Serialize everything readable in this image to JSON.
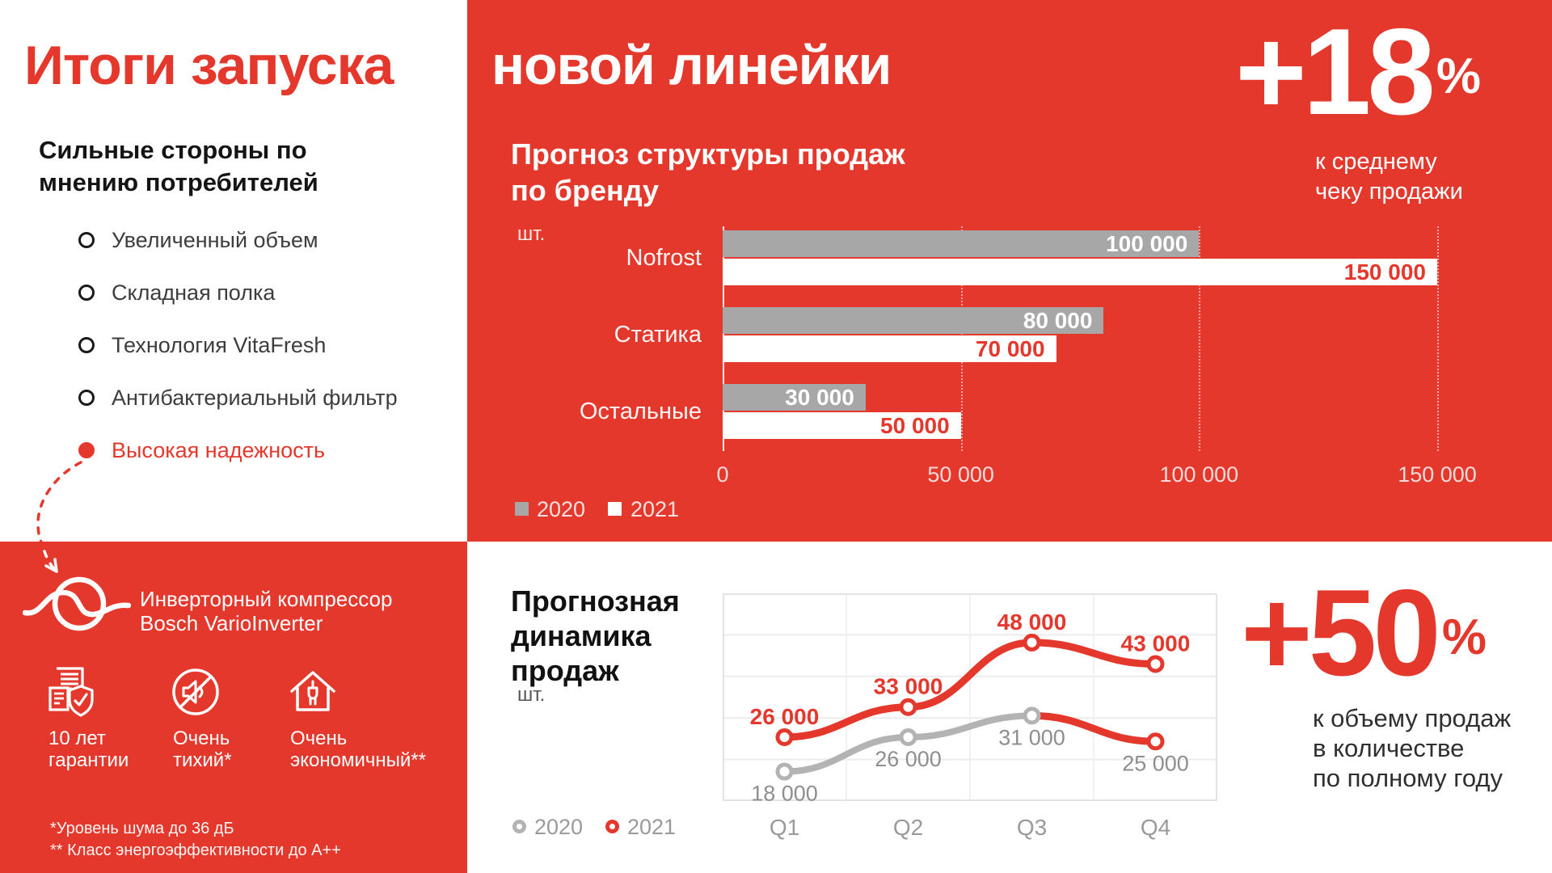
{
  "page": {
    "title_left": "Итоги запуска",
    "title_right": "новой линейки"
  },
  "strengths": {
    "heading": "Сильные стороны по\nмнению потребителей",
    "items": [
      {
        "label": "Увеличенный объем",
        "highlight": false
      },
      {
        "label": "Складная полка",
        "highlight": false
      },
      {
        "label": "Технология VitaFresh",
        "highlight": false
      },
      {
        "label": "Антибактериальный фильтр",
        "highlight": false
      },
      {
        "label": "Высокая надежность",
        "highlight": true
      }
    ]
  },
  "compressor": {
    "title": "Инверторный компрессор\nBosch VarioInverter",
    "features": [
      {
        "icon": "warranty-document-icon",
        "label": "10 лет\nгарантии"
      },
      {
        "icon": "no-noise-icon",
        "label": "Очень\nтихий*"
      },
      {
        "icon": "eco-house-icon",
        "label": "Очень\nэкономичный**"
      }
    ],
    "footnotes": [
      "*Уровень шума до 36 дБ",
      "** Класс энергоэффективности до А++"
    ]
  },
  "kpi_top": {
    "value": "+18",
    "unit": "%",
    "caption": "к среднему\nчеку продажи"
  },
  "kpi_bottom": {
    "value": "+50",
    "unit": "%",
    "caption": "к объему продаж\nв количестве\nпо полному году"
  },
  "chart_data": [
    {
      "type": "bar",
      "orientation": "horizontal",
      "title": "Прогноз структуры продаж\nпо бренду",
      "units": "шт.",
      "categories": [
        "Nofrost",
        "Статика",
        "Остальные"
      ],
      "series": [
        {
          "name": "2020",
          "color": "#a7a7a7",
          "values": [
            100000,
            80000,
            30000
          ],
          "labels": [
            "100 000",
            "80 000",
            "30 000"
          ]
        },
        {
          "name": "2021",
          "color": "#ffffff",
          "values": [
            150000,
            70000,
            50000
          ],
          "labels": [
            "150 000",
            "70 000",
            "50 000"
          ]
        }
      ],
      "xlim": [
        0,
        150000
      ],
      "x_tick_values": [
        0,
        50000,
        100000,
        150000
      ],
      "x_ticks": [
        "0",
        "50 000",
        "100 000",
        "150 000"
      ],
      "grid": true,
      "legend_position": "bottom-left"
    },
    {
      "type": "line",
      "title": "Прогнозная\nдинамика\nпродаж",
      "units": "шт.",
      "categories": [
        "Q1",
        "Q2",
        "Q3",
        "Q4"
      ],
      "series": [
        {
          "name": "2020",
          "color": "#b3b3b3",
          "values": [
            18000,
            26000,
            31000,
            25000
          ],
          "labels": [
            "18 000",
            "26 000",
            "31 000",
            "25 000"
          ],
          "note": "last segment and last marker drawn in red"
        },
        {
          "name": "2021",
          "color": "#e5382c",
          "values": [
            26000,
            33000,
            48000,
            43000
          ],
          "labels": [
            "26 000",
            "33 000",
            "48 000",
            "43 000"
          ]
        }
      ],
      "ylim": [
        11150,
        59450
      ],
      "grid": true,
      "legend_position": "bottom-left"
    }
  ],
  "colors": {
    "brand_red": "#e5382c",
    "bar_gray": "#a7a7a7",
    "line_gray": "#b3b3b3",
    "value_gray": "#8e8e8e",
    "white": "#ffffff"
  }
}
